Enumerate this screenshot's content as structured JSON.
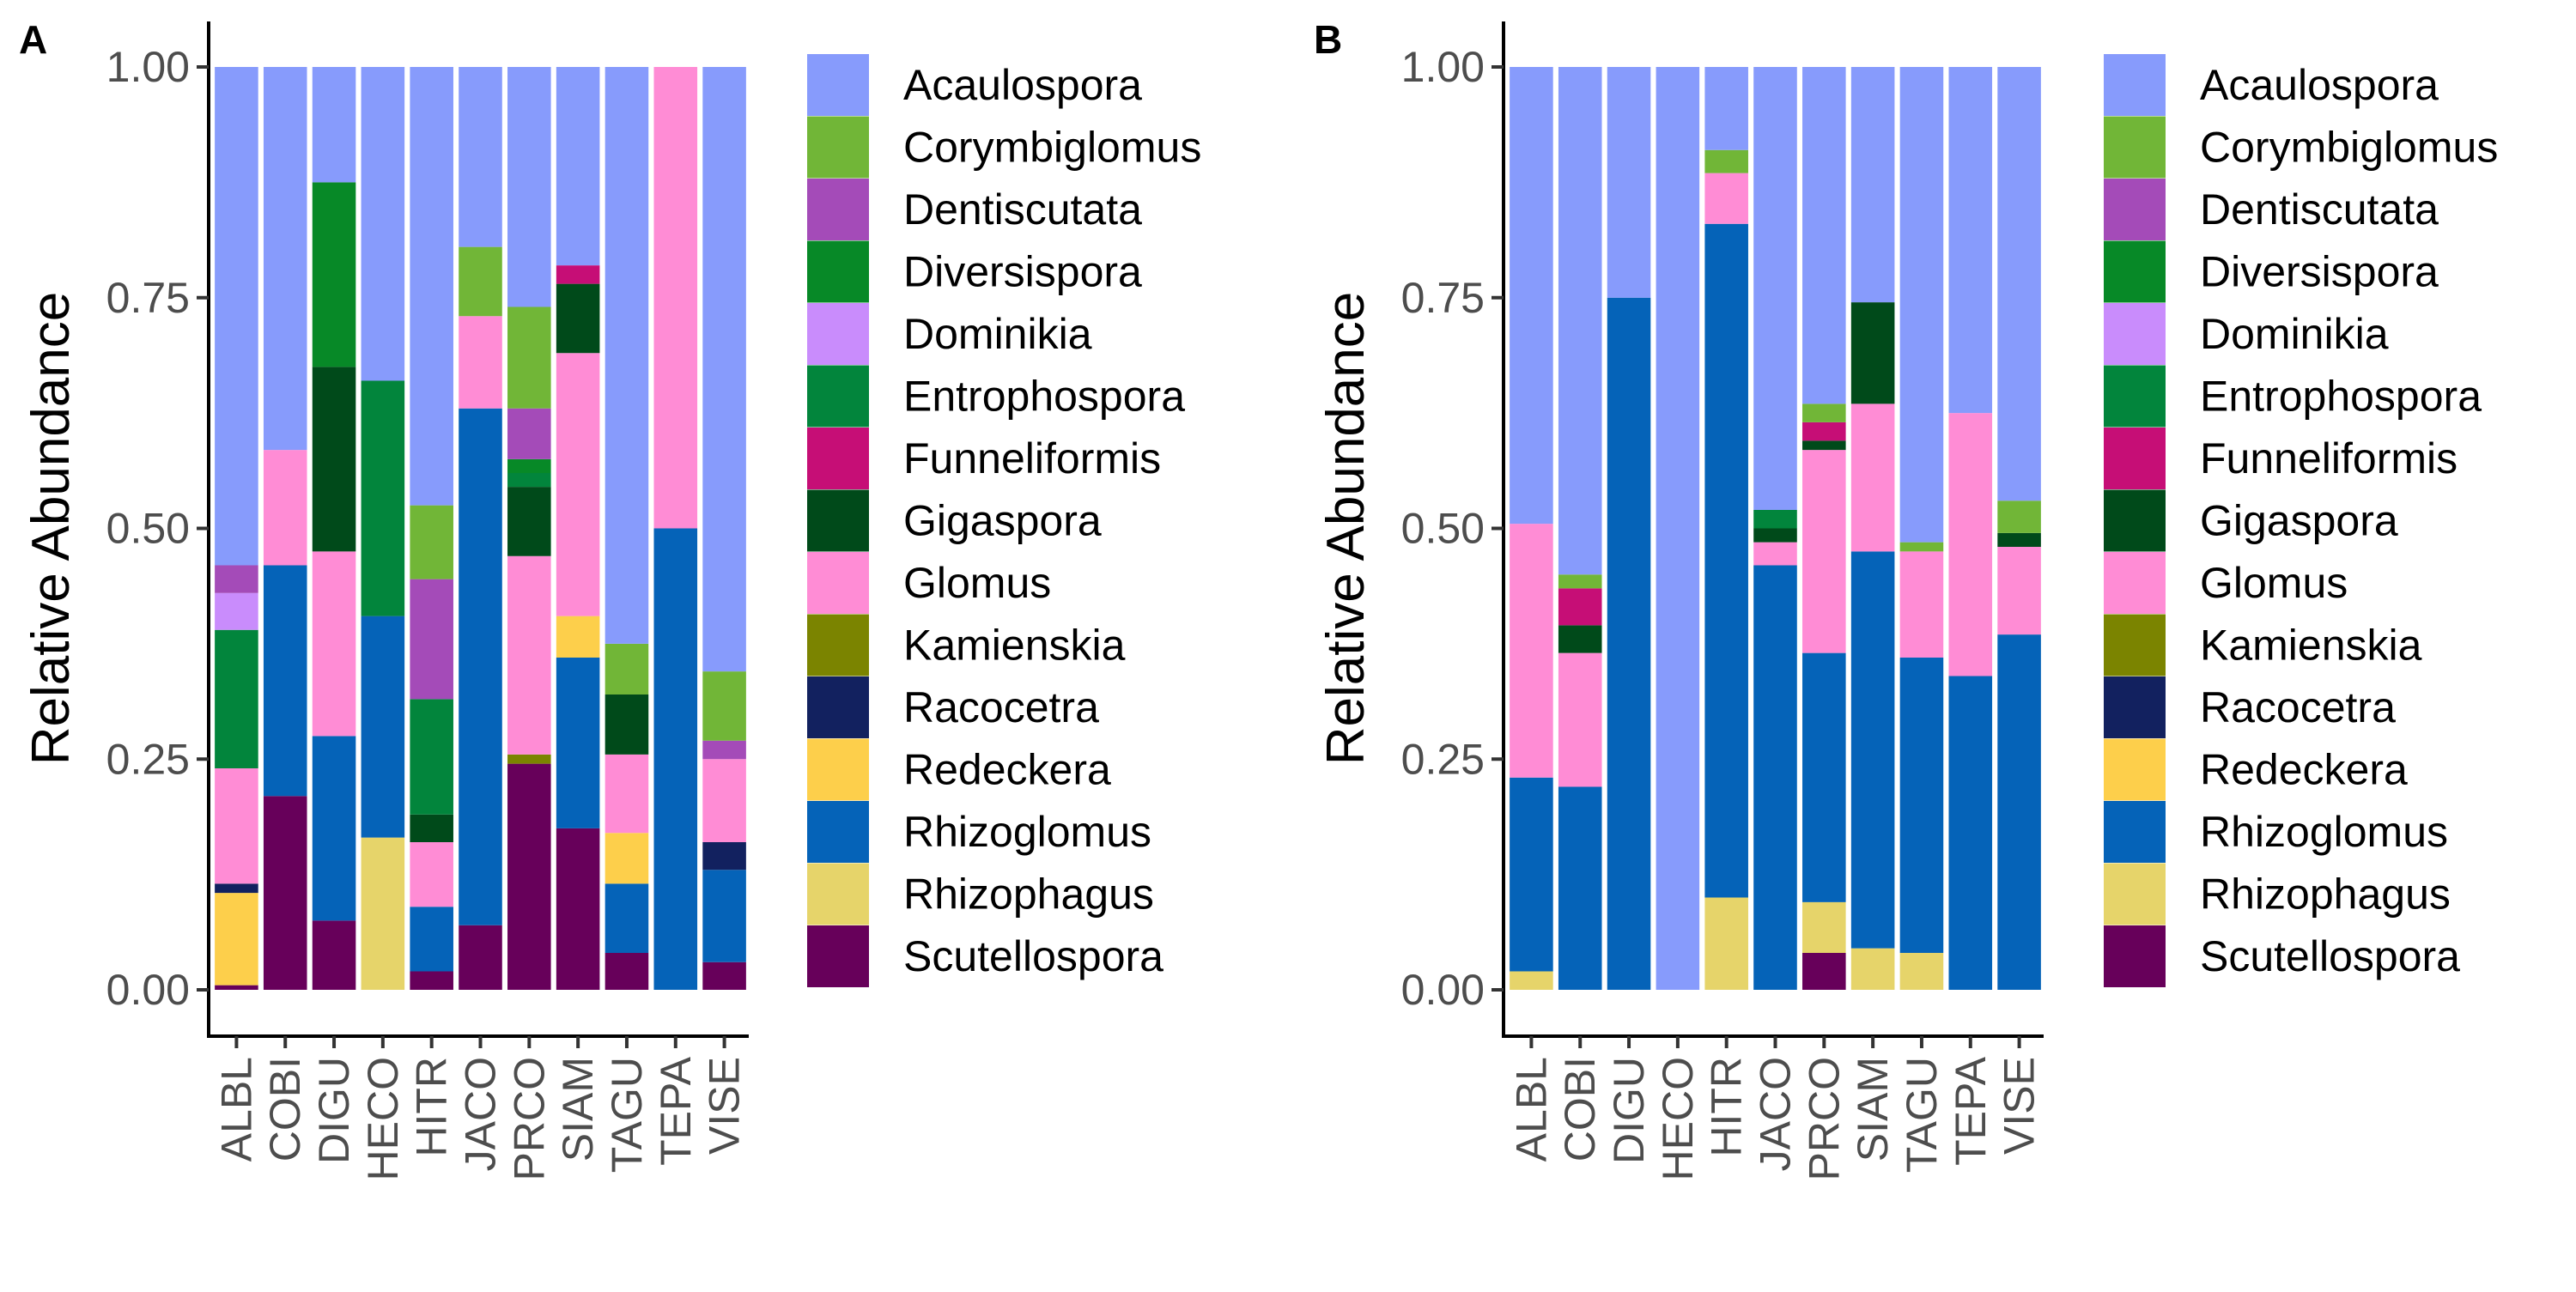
{
  "chart_data": [
    {
      "type": "bar",
      "stacked": true,
      "panel_label": "A",
      "ylabel": "Relative Abundance",
      "xlabel": "",
      "ylim": [
        0,
        1
      ],
      "yticks": [
        "0.00",
        "0.25",
        "0.50",
        "0.75",
        "1.00"
      ],
      "legend_position": "right",
      "categories": [
        "ALBL",
        "COBI",
        "DIGU",
        "HECO",
        "HITR",
        "JACO",
        "PRCO",
        "SIAM",
        "TAGU",
        "TEPA",
        "VISE"
      ],
      "series": [
        {
          "name": "Scutellospora",
          "color": "#67005A",
          "values": [
            0.005,
            0.21,
            0.075,
            0,
            0.02,
            0.07,
            0.245,
            0.175,
            0.04,
            0,
            0.03
          ]
        },
        {
          "name": "Rhizophagus",
          "color": "#E6D46A",
          "values": [
            0,
            0,
            0,
            0.165,
            0,
            0,
            0,
            0,
            0,
            0,
            0
          ]
        },
        {
          "name": "Rhizoglomus",
          "color": "#0563B8",
          "values": [
            0,
            0.25,
            0.2,
            0.24,
            0.07,
            0.56,
            0,
            0.185,
            0.075,
            0.5,
            0.1
          ]
        },
        {
          "name": "Redeckera",
          "color": "#FDCF4B",
          "values": [
            0.1,
            0,
            0,
            0,
            0,
            0,
            0,
            0.045,
            0.055,
            0,
            0
          ]
        },
        {
          "name": "Racocetra",
          "color": "#12215F",
          "values": [
            0.01,
            0,
            0,
            0,
            0,
            0,
            0,
            0,
            0,
            0,
            0.03
          ]
        },
        {
          "name": "Kamienskia",
          "color": "#7B8400",
          "values": [
            0,
            0,
            0,
            0,
            0,
            0,
            0.01,
            0,
            0,
            0,
            0
          ]
        },
        {
          "name": "Glomus",
          "color": "#FF8CD5",
          "values": [
            0.125,
            0.125,
            0.2,
            0,
            0.07,
            0.1,
            0.215,
            0.285,
            0.085,
            0.5,
            0.09
          ]
        },
        {
          "name": "Gigaspora",
          "color": "#004A1A",
          "values": [
            0,
            0,
            0.2,
            0,
            0.03,
            0,
            0.075,
            0.075,
            0.065,
            0,
            0
          ]
        },
        {
          "name": "Funneliformis",
          "color": "#C60E76",
          "values": [
            0,
            0,
            0,
            0,
            0,
            0,
            0,
            0.02,
            0,
            0,
            0
          ]
        },
        {
          "name": "Entrophospora",
          "color": "#02853C",
          "values": [
            0.15,
            0,
            0,
            0.255,
            0.125,
            0,
            0.015,
            0,
            0,
            0,
            0
          ]
        },
        {
          "name": "Dominikia",
          "color": "#C98CFC",
          "values": [
            0.04,
            0,
            0,
            0,
            0,
            0,
            0,
            0,
            0,
            0,
            0
          ]
        },
        {
          "name": "Diversispora",
          "color": "#078927",
          "values": [
            0,
            0,
            0.2,
            0,
            0,
            0,
            0.015,
            0,
            0,
            0,
            0
          ]
        },
        {
          "name": "Dentiscutata",
          "color": "#A44BB8",
          "values": [
            0.03,
            0,
            0,
            0,
            0.13,
            0,
            0.055,
            0,
            0,
            0,
            0.02
          ]
        },
        {
          "name": "Corymbiglomus",
          "color": "#71B637",
          "values": [
            0,
            0,
            0,
            0,
            0.08,
            0.075,
            0.11,
            0,
            0.055,
            0,
            0.075
          ]
        },
        {
          "name": "Acaulospora",
          "color": "#879BFC",
          "values": [
            0.54,
            0.415,
            0.125,
            0.34,
            0.475,
            0.195,
            0.26,
            0.215,
            0.625,
            0,
            0.655
          ]
        }
      ]
    },
    {
      "type": "bar",
      "stacked": true,
      "panel_label": "B",
      "ylabel": "Relative Abundance",
      "xlabel": "",
      "ylim": [
        0,
        1
      ],
      "yticks": [
        "0.00",
        "0.25",
        "0.50",
        "0.75",
        "1.00"
      ],
      "legend_position": "right",
      "categories": [
        "ALBL",
        "COBI",
        "DIGU",
        "HECO",
        "HITR",
        "JACO",
        "PRCO",
        "SIAM",
        "TAGU",
        "TEPA",
        "VISE"
      ],
      "series": [
        {
          "name": "Scutellospora",
          "color": "#67005A",
          "values": [
            0,
            0,
            0,
            0,
            0,
            0,
            0.04,
            0,
            0,
            0,
            0
          ]
        },
        {
          "name": "Rhizophagus",
          "color": "#E6D46A",
          "values": [
            0.02,
            0,
            0,
            0,
            0.1,
            0,
            0.055,
            0.045,
            0.04,
            0,
            0
          ]
        },
        {
          "name": "Rhizoglomus",
          "color": "#0563B8",
          "values": [
            0.21,
            0.22,
            0.75,
            0,
            0.73,
            0.46,
            0.27,
            0.43,
            0.32,
            0.34,
            0.385
          ]
        },
        {
          "name": "Redeckera",
          "color": "#FDCF4B",
          "values": [
            0,
            0,
            0,
            0,
            0,
            0,
            0,
            0,
            0,
            0,
            0
          ]
        },
        {
          "name": "Racocetra",
          "color": "#12215F",
          "values": [
            0,
            0,
            0,
            0,
            0,
            0,
            0,
            0,
            0,
            0,
            0
          ]
        },
        {
          "name": "Kamienskia",
          "color": "#7B8400",
          "values": [
            0,
            0,
            0,
            0,
            0,
            0,
            0,
            0,
            0,
            0,
            0
          ]
        },
        {
          "name": "Glomus",
          "color": "#FF8CD5",
          "values": [
            0.275,
            0.145,
            0,
            0,
            0.055,
            0.025,
            0.22,
            0.16,
            0.115,
            0.285,
            0.095
          ]
        },
        {
          "name": "Gigaspora",
          "color": "#004A1A",
          "values": [
            0,
            0.03,
            0,
            0,
            0,
            0.015,
            0.01,
            0.11,
            0,
            0,
            0.015
          ]
        },
        {
          "name": "Funneliformis",
          "color": "#C60E76",
          "values": [
            0,
            0.04,
            0,
            0,
            0,
            0,
            0.02,
            0,
            0,
            0,
            0
          ]
        },
        {
          "name": "Entrophospora",
          "color": "#02853C",
          "values": [
            0,
            0,
            0,
            0,
            0,
            0.02,
            0,
            0,
            0,
            0,
            0
          ]
        },
        {
          "name": "Dominikia",
          "color": "#C98CFC",
          "values": [
            0,
            0,
            0,
            0,
            0,
            0,
            0,
            0,
            0,
            0,
            0
          ]
        },
        {
          "name": "Diversispora",
          "color": "#078927",
          "values": [
            0,
            0,
            0,
            0,
            0,
            0,
            0,
            0,
            0,
            0,
            0
          ]
        },
        {
          "name": "Dentiscutata",
          "color": "#A44BB8",
          "values": [
            0,
            0,
            0,
            0,
            0,
            0,
            0,
            0,
            0,
            0,
            0
          ]
        },
        {
          "name": "Corymbiglomus",
          "color": "#71B637",
          "values": [
            0,
            0.015,
            0,
            0,
            0.025,
            0,
            0.02,
            0,
            0.01,
            0,
            0.035
          ]
        },
        {
          "name": "Acaulospora",
          "color": "#879BFC",
          "values": [
            0.495,
            0.55,
            0.25,
            1.0,
            0.09,
            0.48,
            0.365,
            0.255,
            0.515,
            0.375,
            0.47
          ]
        }
      ]
    }
  ],
  "legend": {
    "entries": [
      {
        "label": "Acaulospora",
        "color": "#879BFC"
      },
      {
        "label": "Corymbiglomus",
        "color": "#71B637"
      },
      {
        "label": "Dentiscutata",
        "color": "#A44BB8"
      },
      {
        "label": "Diversispora",
        "color": "#078927"
      },
      {
        "label": "Dominikia",
        "color": "#C98CFC"
      },
      {
        "label": "Entrophospora",
        "color": "#02853C"
      },
      {
        "label": "Funneliformis",
        "color": "#C60E76"
      },
      {
        "label": "Gigaspora",
        "color": "#004A1A"
      },
      {
        "label": "Glomus",
        "color": "#FF8CD5"
      },
      {
        "label": "Kamienskia",
        "color": "#7B8400"
      },
      {
        "label": "Racocetra",
        "color": "#12215F"
      },
      {
        "label": "Redeckera",
        "color": "#FDCF4B"
      },
      {
        "label": "Rhizoglomus",
        "color": "#0563B8"
      },
      {
        "label": "Rhizophagus",
        "color": "#E6D46A"
      },
      {
        "label": "Scutellospora",
        "color": "#67005A"
      }
    ]
  }
}
